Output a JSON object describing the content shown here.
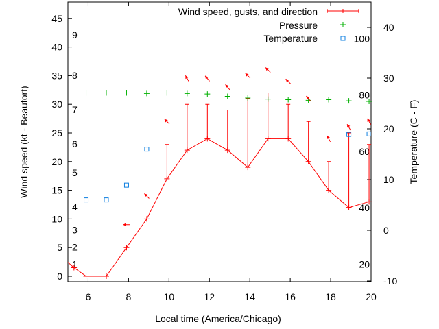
{
  "chart_data": {
    "type": "line",
    "xlabel": "Local time (America/Chicago)",
    "ylabel": "Wind speed (kt - Beaufort)",
    "y2label": "Temperature (C - F)",
    "xlim": [
      5,
      20
    ],
    "ylim": [
      -1,
      48
    ],
    "y2lim": [
      -10,
      45
    ],
    "xticks": [
      6,
      8,
      10,
      12,
      14,
      16,
      18,
      20
    ],
    "yticks": [
      0,
      5,
      10,
      15,
      20,
      25,
      30,
      35,
      40,
      45
    ],
    "y2ticks": [
      -10,
      0,
      10,
      20,
      30,
      40
    ],
    "beaufort_ticks": [
      {
        "label": "1",
        "kt": 1
      },
      {
        "label": "2",
        "kt": 4
      },
      {
        "label": "3",
        "kt": 7
      },
      {
        "label": "4",
        "kt": 11
      },
      {
        "label": "5",
        "kt": 17
      },
      {
        "label": "6",
        "kt": 22
      },
      {
        "label": "7",
        "kt": 28
      },
      {
        "label": "8",
        "kt": 34
      },
      {
        "label": "9",
        "kt": 41
      }
    ],
    "fahrenheit_ticks": [
      {
        "label": "20",
        "c": -6.67
      },
      {
        "label": "40",
        "c": 4.44
      },
      {
        "label": "60",
        "c": 15.56
      },
      {
        "label": "80",
        "c": 26.67
      },
      {
        "label": "100",
        "c": 37.78
      }
    ],
    "legend": {
      "placement": "top-right",
      "entries": [
        "Wind speed, gusts, and direction",
        "Pressure",
        "Temperature"
      ]
    },
    "colors": {
      "wind": "#ff0000",
      "pressure": "#00b000",
      "temperature": "#1080e0"
    },
    "wind": {
      "x": [
        4.5,
        5.3,
        5.9,
        6.9,
        7.9,
        8.9,
        9.9,
        10.9,
        11.9,
        12.9,
        13.9,
        14.9,
        15.9,
        16.9,
        17.9,
        18.9,
        19.9
      ],
      "y": [
        4,
        1.5,
        0,
        0,
        5,
        10,
        17,
        22,
        24,
        22,
        19,
        24,
        24,
        20,
        15,
        12,
        13
      ]
    },
    "gusts": {
      "x": [
        9.9,
        10.9,
        11.9,
        12.9,
        13.9,
        14.9,
        15.9,
        16.9,
        17.9,
        18.9,
        19.9
      ],
      "y": [
        23,
        30,
        30,
        29,
        31,
        32,
        30,
        27,
        20,
        25,
        23
      ]
    },
    "pressure": {
      "x": [
        5.9,
        6.9,
        7.9,
        8.9,
        9.9,
        10.9,
        11.9,
        12.9,
        13.9,
        14.9,
        15.9,
        16.9,
        17.9,
        18.9,
        19.9
      ],
      "y": [
        32,
        32,
        32,
        31.9,
        32,
        31.9,
        31.8,
        31.4,
        31.1,
        30.9,
        30.8,
        30.7,
        30.8,
        30.6,
        30.5
      ]
    },
    "temperature": {
      "x": [
        5.9,
        6.9,
        7.9,
        8.9,
        18.9,
        19.9
      ],
      "y": [
        6,
        6,
        8.9,
        16,
        18.9,
        19
      ]
    },
    "direction_arrows": {
      "x": [
        7.9,
        8.9,
        9.9,
        10.9,
        11.9,
        12.9,
        13.9,
        14.9,
        15.9,
        16.9,
        17.9,
        18.9,
        19.9
      ],
      "y": [
        9,
        14,
        27,
        34.5,
        34.5,
        33,
        35,
        36,
        34,
        31,
        24,
        26,
        27
      ],
      "from_deg": [
        270,
        315,
        315,
        330,
        320,
        320,
        315,
        315,
        315,
        320,
        330,
        330,
        330
      ]
    }
  }
}
